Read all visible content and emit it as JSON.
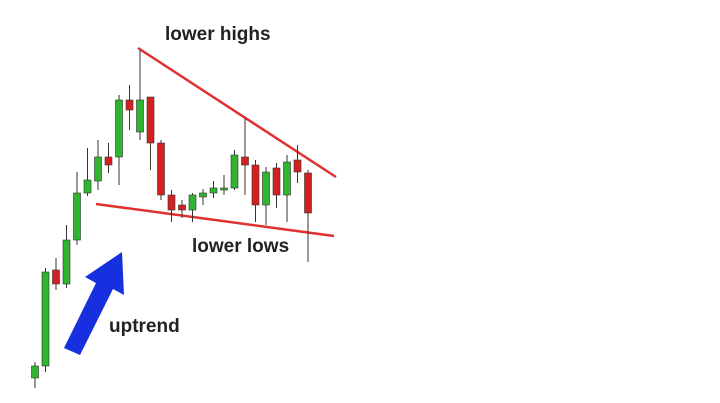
{
  "chart_data": {
    "type": "candlestick",
    "annotations": [
      "lower highs",
      "lower lows",
      "uptrend"
    ],
    "open": [
      25,
      37,
      133,
      119,
      163,
      210,
      222,
      246,
      246,
      303,
      271,
      306,
      260,
      208,
      198,
      193,
      206,
      210,
      213,
      215,
      246,
      238,
      198,
      235,
      208,
      243,
      230
    ],
    "high": [
      41,
      135,
      145,
      178,
      231,
      255,
      263,
      260,
      308,
      318,
      353,
      306,
      263,
      213,
      203,
      210,
      214,
      222,
      228,
      253,
      285,
      243,
      236,
      240,
      248,
      258,
      233
    ],
    "low": [
      15,
      31,
      113,
      115,
      158,
      207,
      213,
      230,
      218,
      273,
      263,
      233,
      203,
      181,
      185,
      181,
      198,
      205,
      208,
      213,
      208,
      181,
      178,
      195,
      181,
      220,
      141
    ],
    "close": [
      37,
      131,
      119,
      163,
      210,
      223,
      246,
      238,
      303,
      293,
      303,
      260,
      208,
      193,
      193,
      208,
      210,
      215,
      215,
      248,
      238,
      198,
      231,
      208,
      241,
      231,
      190
    ],
    "up_color": "#2fb52f",
    "down_color": "#d42020",
    "ylim": [
      0,
      403
    ]
  }
}
